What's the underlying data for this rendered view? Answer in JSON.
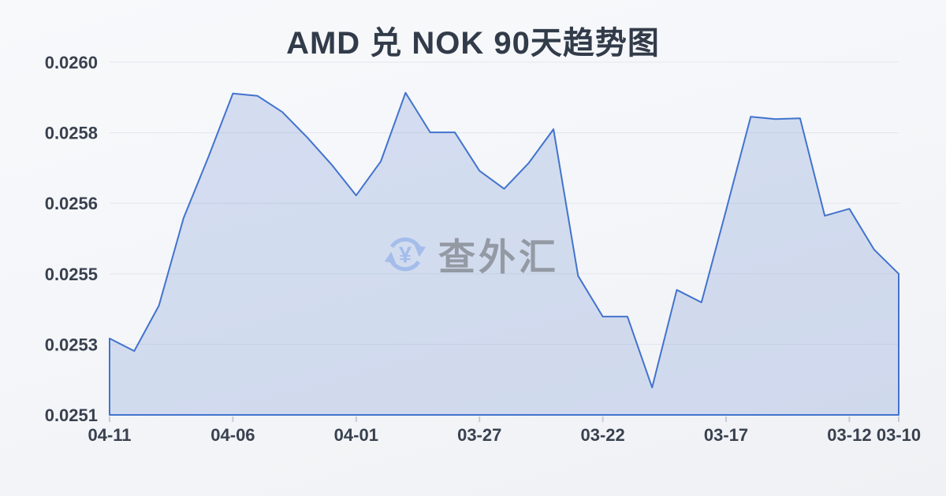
{
  "title": "AMD 兑 NOK 90天趋势图",
  "watermark": {
    "text": "查外汇",
    "icon": "currency-exchange-icon"
  },
  "colors": {
    "line": "#4273cd",
    "fill": "rgba(92,126,205,0.22)",
    "grid": "#e2e7ed",
    "tick": "#c6ccd6",
    "axis_text": "#39414f",
    "title_text": "#323b49",
    "watermark_text": "#949aa4",
    "watermark_icon": "#a4bdeb"
  },
  "chart_data": {
    "type": "area",
    "title": "AMD 兑 NOK 90天趋势图",
    "xlabel": "",
    "ylabel": "",
    "grid": true,
    "legend": "none",
    "x": [
      "04-11",
      "04-10",
      "04-09",
      "04-08",
      "04-07",
      "04-06",
      "04-05",
      "04-04",
      "04-03",
      "04-02",
      "04-01",
      "03-31",
      "03-30",
      "03-29",
      "03-28",
      "03-27",
      "03-26",
      "03-25",
      "03-24",
      "03-23",
      "03-22",
      "03-21",
      "03-20",
      "03-19",
      "03-18",
      "03-17",
      "03-16",
      "03-15",
      "03-14",
      "03-13",
      "03-12",
      "03-11",
      "03-10"
    ],
    "values": [
      0.025295,
      0.025263,
      0.025379,
      0.025602,
      0.025757,
      0.02592,
      0.025914,
      0.025873,
      0.025809,
      0.025739,
      0.02566,
      0.025747,
      0.025922,
      0.025821,
      0.025821,
      0.025723,
      0.025677,
      0.025743,
      0.025829,
      0.025455,
      0.025351,
      0.025351,
      0.02517,
      0.025419,
      0.025387,
      0.025622,
      0.025861,
      0.025855,
      0.025857,
      0.025608,
      0.025626,
      0.025522,
      0.02546
    ],
    "ylim": [
      0.0251,
      0.026
    ],
    "y_ticks": [
      {
        "value": 0.026,
        "label": "0.0260"
      },
      {
        "value": 0.02582,
        "label": "0.0258"
      },
      {
        "value": 0.02564,
        "label": "0.0256"
      },
      {
        "value": 0.02546,
        "label": "0.0255"
      },
      {
        "value": 0.02528,
        "label": "0.0253"
      },
      {
        "value": 0.0251,
        "label": "0.0251"
      }
    ],
    "x_tick_indices": [
      0,
      5,
      10,
      15,
      20,
      25,
      30,
      32
    ]
  }
}
